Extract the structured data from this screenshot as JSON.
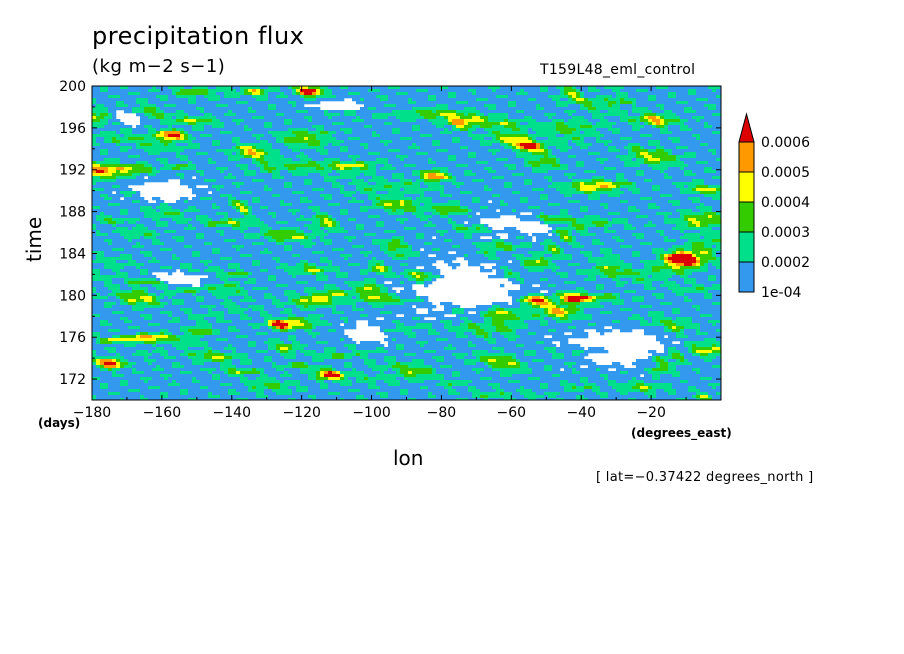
{
  "chart_data": {
    "type": "heatmap",
    "title": "precipitation flux",
    "units": "(kg m−2 s−1)",
    "run_label": "T159L48_eml_control",
    "xlabel": "lon",
    "ylabel": "time",
    "x_unit": "(degrees_east)",
    "y_unit": "(days)",
    "footnote": "[ lat=−0.37422 degrees_north ]",
    "xlim": [
      -180,
      0
    ],
    "ylim": [
      170,
      200
    ],
    "x_ticks": [
      -180,
      -160,
      -140,
      -120,
      -100,
      -80,
      -60,
      -40,
      -20
    ],
    "x_tick_labels": [
      "−180",
      "−160",
      "−140",
      "−120",
      "−100",
      "−80",
      "−60",
      "−40",
      "−20"
    ],
    "y_ticks": [
      172,
      176,
      180,
      184,
      188,
      192,
      196,
      200
    ],
    "colorbar": {
      "levels": [
        0.0001,
        0.0002,
        0.0003,
        0.0004,
        0.0005,
        0.0006
      ],
      "level_labels": [
        "1e-04",
        "0.0002",
        "0.0003",
        "0.0004",
        "0.0005",
        "0.0006"
      ],
      "colors": [
        "#3399ee",
        "#00e08a",
        "#33cc00",
        "#ffff00",
        "#ff9900",
        "#dd0000"
      ],
      "extend": "max"
    },
    "features": [
      {
        "lon": -175,
        "time": 173.5,
        "peak": 0.0006
      },
      {
        "lon": -157,
        "time": 195.3,
        "peak": 0.0006
      },
      {
        "lon": -126,
        "time": 177.2,
        "peak": 0.0006
      },
      {
        "lon": -118,
        "time": 199.5,
        "peak": 0.0006
      },
      {
        "lon": -53,
        "time": 179.5,
        "peak": 0.0006
      },
      {
        "lon": -42,
        "time": 179.7,
        "peak": 0.0006
      },
      {
        "lon": -55,
        "time": 194.2,
        "peak": 0.0006
      },
      {
        "lon": -12,
        "time": 183.5,
        "peak": 0.0006
      },
      {
        "lon": -82,
        "time": 191.4,
        "peak": 0.0005
      },
      {
        "lon": -112,
        "time": 172.4,
        "peak": 0.0006
      }
    ]
  }
}
